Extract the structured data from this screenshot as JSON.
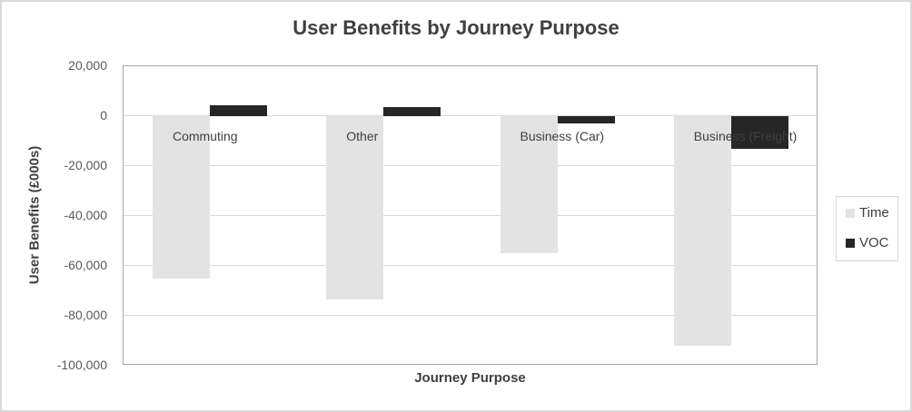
{
  "chart_data": {
    "type": "bar",
    "title": "User Benefits by Journey Purpose",
    "xlabel": "Journey Purpose",
    "ylabel": "User Benefits (£000s)",
    "ylim": [
      -100000,
      20000
    ],
    "yticks": [
      20000,
      0,
      -20000,
      -40000,
      -60000,
      -80000,
      -100000
    ],
    "ytick_labels": [
      "20,000",
      "0",
      "-20,000",
      "-40,000",
      "-60,000",
      "-80,000",
      "-100,000"
    ],
    "grid": true,
    "legend_position": "right",
    "categories": [
      "Commuting",
      "Other",
      "Business (Car)",
      "Business (Freight)"
    ],
    "series": [
      {
        "name": "Time",
        "color": "#e3e3e3",
        "values": [
          -65000,
          -73500,
          -55000,
          -92000
        ]
      },
      {
        "name": "VOC",
        "color": "#262626",
        "values": [
          4500,
          3500,
          -3000,
          -13000
        ]
      }
    ]
  },
  "colors": {
    "time": "#e3e3e3",
    "voc": "#262626",
    "grid": "#d9d9d9",
    "axis_text": "#595959"
  }
}
